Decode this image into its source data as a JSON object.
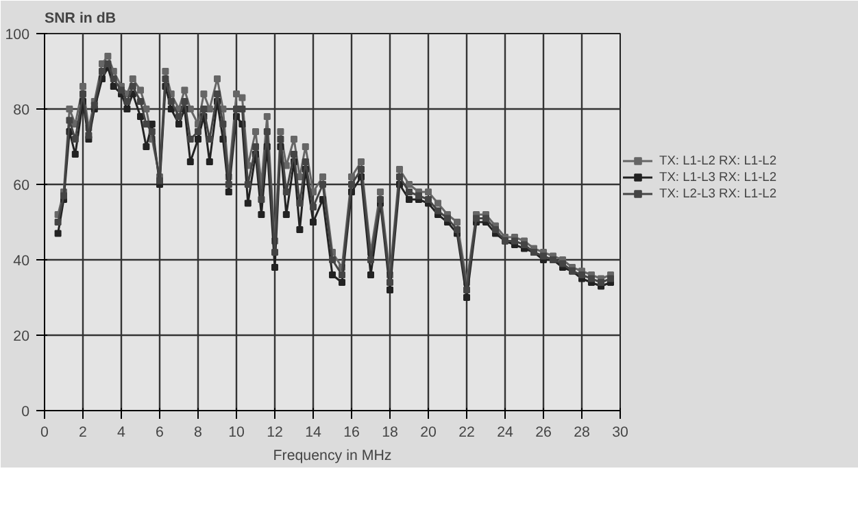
{
  "chart_data": {
    "type": "line",
    "ylabel": "SNR in dB",
    "xlabel": "Frequency in MHz",
    "xlim": [
      0,
      30
    ],
    "xticks": [
      0,
      2,
      4,
      6,
      8,
      10,
      12,
      14,
      16,
      18,
      20,
      22,
      24,
      26,
      28,
      30
    ],
    "ylim": [
      0,
      100
    ],
    "yticks": [
      0,
      20,
      40,
      60,
      80,
      100
    ],
    "grid": true,
    "legend": "right",
    "marker": "square",
    "line_style": "solid",
    "x": [
      0.7,
      1.0,
      1.3,
      1.6,
      2.0,
      2.3,
      2.6,
      3.0,
      3.3,
      3.6,
      4.0,
      4.3,
      4.6,
      5.0,
      5.3,
      5.6,
      6.0,
      6.3,
      6.6,
      7.0,
      7.3,
      7.6,
      8.0,
      8.3,
      8.6,
      9.0,
      9.3,
      9.6,
      10.0,
      10.3,
      10.6,
      11.0,
      11.3,
      11.6,
      12.0,
      12.3,
      12.6,
      13.0,
      13.3,
      13.6,
      14.0,
      14.5,
      15.0,
      15.5,
      16.0,
      16.5,
      17.0,
      17.5,
      18.0,
      18.5,
      19.0,
      19.5,
      20.0,
      20.5,
      21.0,
      21.5,
      22.0,
      22.5,
      23.0,
      23.5,
      24.0,
      24.5,
      25.0,
      25.5,
      26.0,
      26.5,
      27.0,
      27.5,
      28.0,
      28.5,
      29.0,
      29.5
    ],
    "series": [
      {
        "name": "TX: L1-L2 RX: L1-L2",
        "color": "#666666",
        "values": [
          52,
          58,
          80,
          76,
          86,
          75,
          82,
          92,
          94,
          90,
          86,
          84,
          88,
          85,
          80,
          72,
          62,
          90,
          84,
          80,
          85,
          80,
          76,
          84,
          80,
          88,
          80,
          62,
          84,
          83,
          65,
          74,
          60,
          78,
          45,
          74,
          65,
          72,
          62,
          70,
          58,
          62,
          42,
          38,
          62,
          66,
          42,
          58,
          36,
          64,
          60,
          58,
          58,
          55,
          52,
          50,
          34,
          52,
          52,
          49,
          46,
          46,
          45,
          43,
          42,
          41,
          40,
          38,
          37,
          36,
          35,
          36
        ]
      },
      {
        "name": "TX: L1-L3 RX: L1-L2",
        "color": "#222222",
        "values": [
          47,
          56,
          74,
          68,
          82,
          72,
          80,
          88,
          91,
          86,
          84,
          80,
          84,
          78,
          70,
          76,
          60,
          86,
          80,
          76,
          80,
          66,
          72,
          78,
          66,
          82,
          72,
          58,
          78,
          76,
          55,
          68,
          52,
          70,
          38,
          70,
          52,
          66,
          48,
          64,
          50,
          56,
          36,
          34,
          58,
          62,
          36,
          55,
          32,
          60,
          56,
          56,
          55,
          52,
          50,
          47,
          30,
          50,
          50,
          47,
          45,
          44,
          43,
          42,
          40,
          40,
          38,
          37,
          35,
          34,
          33,
          34
        ]
      },
      {
        "name": "TX: L2-L3 RX: L1-L2",
        "color": "#444444",
        "values": [
          50,
          57,
          77,
          72,
          84,
          73,
          81,
          90,
          92,
          88,
          85,
          82,
          86,
          82,
          76,
          74,
          61,
          88,
          82,
          78,
          82,
          72,
          74,
          80,
          72,
          84,
          76,
          60,
          80,
          80,
          60,
          70,
          56,
          74,
          42,
          72,
          58,
          68,
          55,
          66,
          54,
          60,
          40,
          36,
          60,
          64,
          40,
          56,
          34,
          62,
          58,
          57,
          56,
          53,
          51,
          48,
          32,
          51,
          51,
          48,
          45,
          45,
          44,
          42,
          41,
          40,
          39,
          37,
          36,
          35,
          34,
          35
        ]
      }
    ]
  }
}
